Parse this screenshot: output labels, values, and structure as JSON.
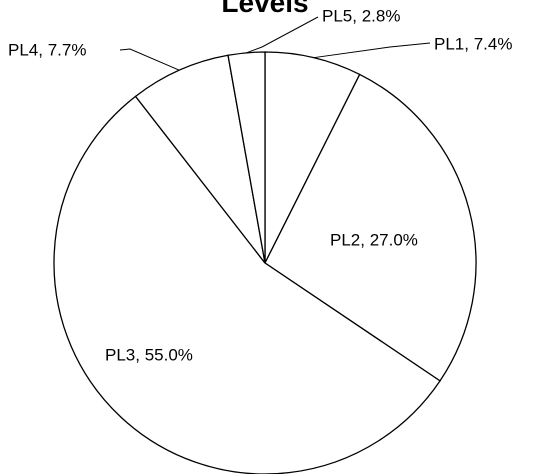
{
  "chart_data": {
    "type": "pie",
    "title": "Levels",
    "values": [
      7.4,
      27.0,
      55.0,
      7.7,
      2.8
    ],
    "value_labels": [
      "PL1, 7.4%",
      "PL2, 27.0%",
      "PL3, 55.0%",
      "PL4, 7.7%",
      "PL5, 2.8%"
    ],
    "color": "#ffffff"
  }
}
